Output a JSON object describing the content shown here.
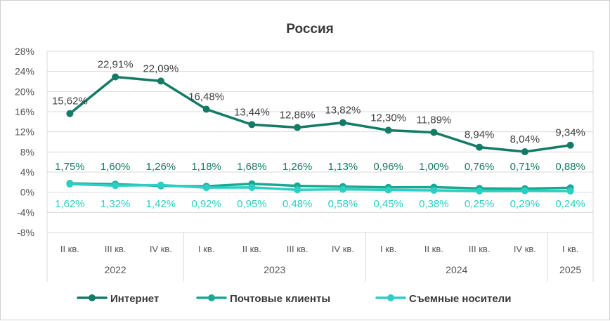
{
  "chart_data": {
    "type": "line",
    "title": "Россия",
    "categories": [
      "II кв.",
      "III кв.",
      "IV кв.",
      "I кв.",
      "II кв.",
      "III кв.",
      "IV кв.",
      "I кв.",
      "II кв.",
      "III кв.",
      "IV кв.",
      "I кв."
    ],
    "years": [
      {
        "label": "2022",
        "count": 3
      },
      {
        "label": "2023",
        "count": 4
      },
      {
        "label": "2024",
        "count": 4
      },
      {
        "label": "2025",
        "count": 1
      }
    ],
    "y_ticks": [
      "28%",
      "24%",
      "20%",
      "16%",
      "12%",
      "8%",
      "4%",
      "0%",
      "-4%",
      "-8%"
    ],
    "ylim": [
      -8,
      28
    ],
    "grid": "horizontal",
    "legend_position": "bottom",
    "series": [
      {
        "name": "Интернет",
        "color": "#137b66",
        "values": [
          15.62,
          22.91,
          22.09,
          16.48,
          13.44,
          12.86,
          13.82,
          12.3,
          11.89,
          8.94,
          8.04,
          9.34
        ],
        "labels": [
          "15,62%",
          "22,91%",
          "22,09%",
          "16,48%",
          "13,44%",
          "12,86%",
          "13,82%",
          "12,30%",
          "11,89%",
          "8,94%",
          "8,04%",
          "9,34%"
        ]
      },
      {
        "name": "Почтовые клиенты",
        "color": "#1aa890",
        "values": [
          1.75,
          1.6,
          1.26,
          1.18,
          1.68,
          1.26,
          1.13,
          0.96,
          1.0,
          0.76,
          0.71,
          0.88
        ],
        "labels": [
          "1,75%",
          "1,60%",
          "1,26%",
          "1,18%",
          "1,68%",
          "1,26%",
          "1,13%",
          "0,96%",
          "1,00%",
          "0,76%",
          "0,71%",
          "0,88%"
        ]
      },
      {
        "name": "Съемные носители",
        "color": "#2ccfc4",
        "values": [
          1.62,
          1.32,
          1.42,
          0.92,
          0.95,
          0.48,
          0.58,
          0.45,
          0.38,
          0.25,
          0.29,
          0.24
        ],
        "labels": [
          "1,62%",
          "1,32%",
          "1,42%",
          "0,92%",
          "0,95%",
          "0,48%",
          "0,58%",
          "0,45%",
          "0,38%",
          "0,25%",
          "0,29%",
          "0,24%"
        ]
      }
    ]
  }
}
